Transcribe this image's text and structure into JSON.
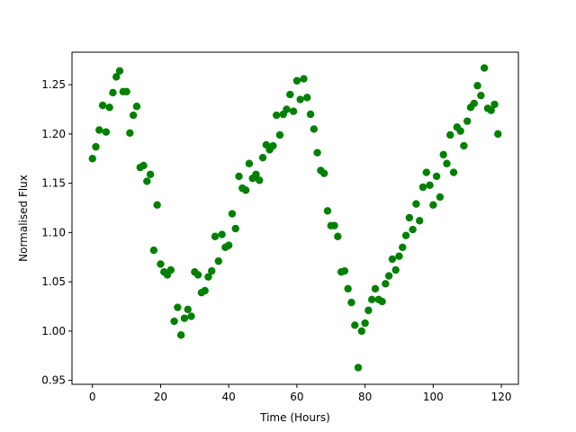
{
  "chart_data": {
    "type": "scatter",
    "title": "",
    "xlabel": "Time (Hours)",
    "ylabel": "Normalised Flux",
    "xlim": [
      -6,
      125
    ],
    "ylim": [
      0.946,
      1.283
    ],
    "xticks": [
      0,
      20,
      40,
      60,
      80,
      100,
      120
    ],
    "xtick_labels": [
      "0",
      "20",
      "40",
      "60",
      "80",
      "100",
      "120"
    ],
    "yticks": [
      0.95,
      1.0,
      1.05,
      1.1,
      1.15,
      1.2,
      1.25
    ],
    "ytick_labels": [
      "0.95",
      "1.00",
      "1.05",
      "1.10",
      "1.15",
      "1.20",
      "1.25"
    ],
    "grid": false,
    "color": "#008000",
    "series": [
      {
        "x": [
          0,
          1,
          2,
          3,
          4,
          5,
          6,
          7,
          8,
          9,
          10,
          11,
          12,
          13,
          14,
          15,
          16,
          17,
          18,
          19,
          20,
          21,
          22,
          23,
          24,
          25,
          26,
          27,
          28,
          29,
          30,
          31,
          32,
          33,
          34,
          35,
          36,
          37,
          38,
          39,
          40,
          41,
          42,
          43,
          44,
          45,
          46,
          47,
          48,
          49,
          50,
          51,
          52,
          53,
          54,
          55,
          56,
          57,
          58,
          59,
          60,
          61,
          62,
          63,
          64,
          65,
          66,
          67,
          68,
          69,
          70,
          71,
          72,
          73,
          74,
          75,
          76,
          77,
          78,
          79,
          80,
          81,
          82,
          83,
          84,
          85,
          86,
          87,
          88,
          89,
          90,
          91,
          92,
          93,
          94,
          95,
          96,
          97,
          98,
          99,
          100,
          101,
          102,
          103,
          104,
          105,
          106,
          107,
          108,
          109,
          110,
          111,
          112,
          113,
          114,
          115,
          116,
          117,
          118,
          119
        ],
        "y": [
          1.175,
          1.187,
          1.204,
          1.229,
          1.202,
          1.227,
          1.242,
          1.258,
          1.264,
          1.243,
          1.243,
          1.201,
          1.219,
          1.228,
          1.166,
          1.168,
          1.152,
          1.159,
          1.082,
          1.128,
          1.068,
          1.06,
          1.057,
          1.062,
          1.01,
          1.024,
          0.996,
          1.013,
          1.022,
          1.015,
          1.06,
          1.057,
          1.039,
          1.041,
          1.055,
          1.061,
          1.096,
          1.071,
          1.098,
          1.085,
          1.087,
          1.119,
          1.104,
          1.157,
          1.145,
          1.143,
          1.17,
          1.155,
          1.159,
          1.153,
          1.176,
          1.189,
          1.184,
          1.188,
          1.219,
          1.199,
          1.22,
          1.225,
          1.24,
          1.223,
          1.254,
          1.235,
          1.256,
          1.237,
          1.22,
          1.205,
          1.181,
          1.163,
          1.16,
          1.122,
          1.107,
          1.107,
          1.096,
          1.06,
          1.061,
          1.043,
          1.029,
          1.006,
          0.963,
          1.0,
          1.008,
          1.021,
          1.032,
          1.043,
          1.032,
          1.03,
          1.048,
          1.056,
          1.073,
          1.062,
          1.076,
          1.085,
          1.097,
          1.115,
          1.103,
          1.129,
          1.112,
          1.146,
          1.161,
          1.148,
          1.128,
          1.157,
          1.136,
          1.179,
          1.17,
          1.199,
          1.161,
          1.207,
          1.203,
          1.188,
          1.213,
          1.227,
          1.231,
          1.249,
          1.239,
          1.267,
          1.226,
          1.224,
          1.23,
          1.2
        ]
      }
    ]
  }
}
